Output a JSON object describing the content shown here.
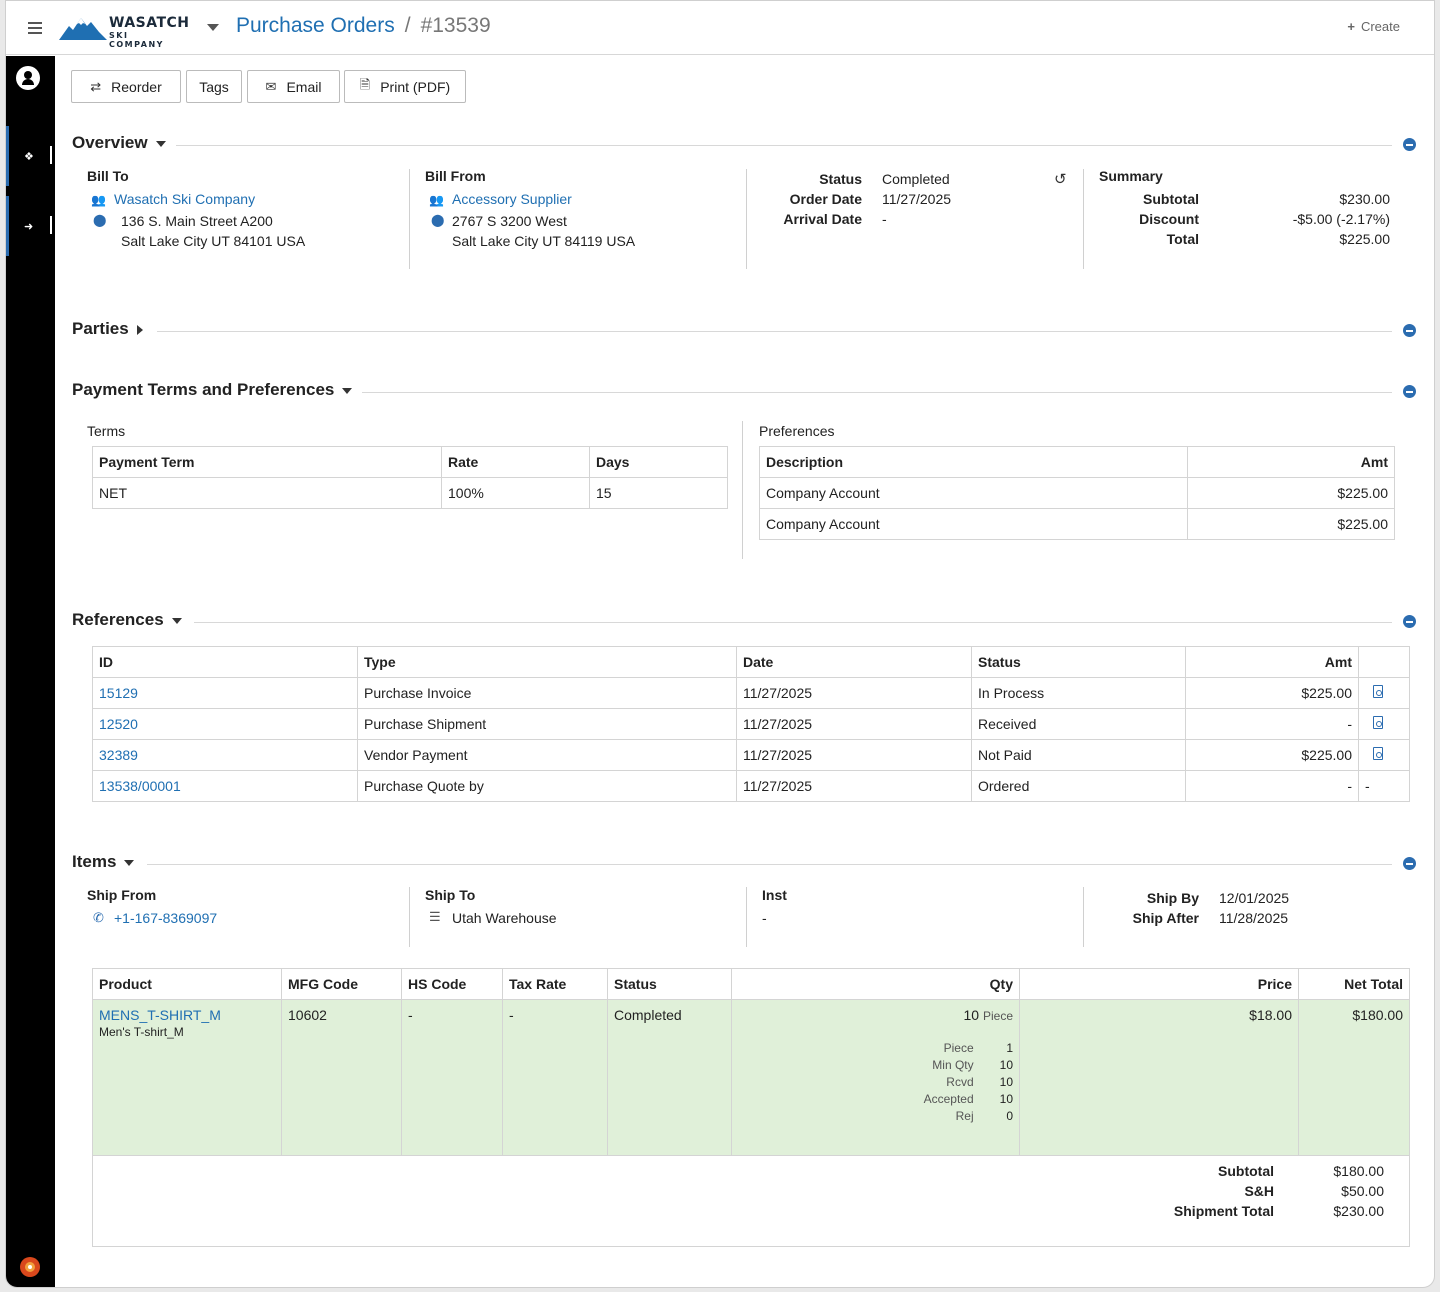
{
  "header": {
    "logo_line1": "WASATCH",
    "logo_line2": "SKI COMPANY",
    "breadcrumb_module": "Purchase Orders",
    "breadcrumb_sep": "/",
    "breadcrumb_record": "#13539",
    "create_label": "Create"
  },
  "toolbar": {
    "reorder": "Reorder",
    "tags": "Tags",
    "email": "Email",
    "print": "Print (PDF)"
  },
  "overview": {
    "title": "Overview",
    "bill_to": {
      "label": "Bill To",
      "name": "Wasatch Ski Company",
      "address1": "136 S. Main Street A200",
      "address2": "Salt Lake City UT 84101 USA"
    },
    "bill_from": {
      "label": "Bill From",
      "name": "Accessory Supplier",
      "address1": "2767 S 3200 West",
      "address2": "Salt Lake City UT 84119 USA"
    },
    "status_label": "Status",
    "status_value": "Completed",
    "order_date_label": "Order Date",
    "order_date_value": "11/27/2025",
    "arrival_date_label": "Arrival Date",
    "arrival_date_value": "-",
    "summary": {
      "label": "Summary",
      "subtotal_label": "Subtotal",
      "subtotal_value": "$230.00",
      "discount_label": "Discount",
      "discount_value": "-$5.00 (-2.17%)",
      "total_label": "Total",
      "total_value": "$225.00"
    }
  },
  "parties": {
    "title": "Parties"
  },
  "payment": {
    "title": "Payment Terms and Preferences",
    "terms_label": "Terms",
    "terms_headers": [
      "Payment Term",
      "Rate",
      "Days"
    ],
    "terms_rows": [
      [
        "NET",
        "100%",
        "15"
      ]
    ],
    "prefs_label": "Preferences",
    "prefs_headers": [
      "Description",
      "Amt"
    ],
    "prefs_rows": [
      [
        "Company Account",
        "$225.00"
      ],
      [
        "Company Account",
        "$225.00"
      ]
    ]
  },
  "references": {
    "title": "References",
    "headers": [
      "ID",
      "Type",
      "Date",
      "Status",
      "Amt"
    ],
    "rows": [
      {
        "id": "15129",
        "type": "Purchase Invoice",
        "date": "11/27/2025",
        "status": "In Process",
        "amt": "$225.00",
        "doc": "pdf"
      },
      {
        "id": "12520",
        "type": "Purchase Shipment",
        "date": "11/27/2025",
        "status": "Received",
        "amt": "-",
        "doc": "pdf"
      },
      {
        "id": "32389",
        "type": "Vendor Payment",
        "date": "11/27/2025",
        "status": "Not Paid",
        "amt": "$225.00",
        "doc": "pdf"
      },
      {
        "id": "13538/00001",
        "type": "Purchase Quote by",
        "date": "11/27/2025",
        "status": "Ordered",
        "amt": "-",
        "doc": "-"
      }
    ]
  },
  "items": {
    "title": "Items",
    "ship_from_label": "Ship From",
    "ship_from_phone": "+1-167-8369097",
    "ship_to_label": "Ship To",
    "ship_to_value": "Utah Warehouse",
    "inst_label": "Inst",
    "inst_value": "-",
    "ship_by_label": "Ship By",
    "ship_by_value": "12/01/2025",
    "ship_after_label": "Ship After",
    "ship_after_value": "11/28/2025",
    "headers": [
      "Product",
      "MFG Code",
      "HS Code",
      "Tax Rate",
      "Status",
      "Qty",
      "Price",
      "Net Total"
    ],
    "row": {
      "product_code": "MENS_T-SHIRT_M",
      "product_name": "Men's T-shirt_M",
      "mfg_code": "10602",
      "hs_code": "-",
      "tax_rate": "-",
      "status": "Completed",
      "qty": "10",
      "qty_unit": "Piece",
      "qty_details": [
        {
          "label": "Piece",
          "value": "1"
        },
        {
          "label": "Min Qty",
          "value": "10"
        },
        {
          "label": "Rcvd",
          "value": "10"
        },
        {
          "label": "Accepted",
          "value": "10"
        },
        {
          "label": "Rej",
          "value": "0"
        }
      ],
      "price": "$18.00",
      "net_total": "$180.00"
    },
    "totals": {
      "subtotal_label": "Subtotal",
      "subtotal_value": "$180.00",
      "sh_label": "S&H",
      "sh_value": "$50.00",
      "shipment_total_label": "Shipment Total",
      "shipment_total_value": "$230.00"
    }
  }
}
